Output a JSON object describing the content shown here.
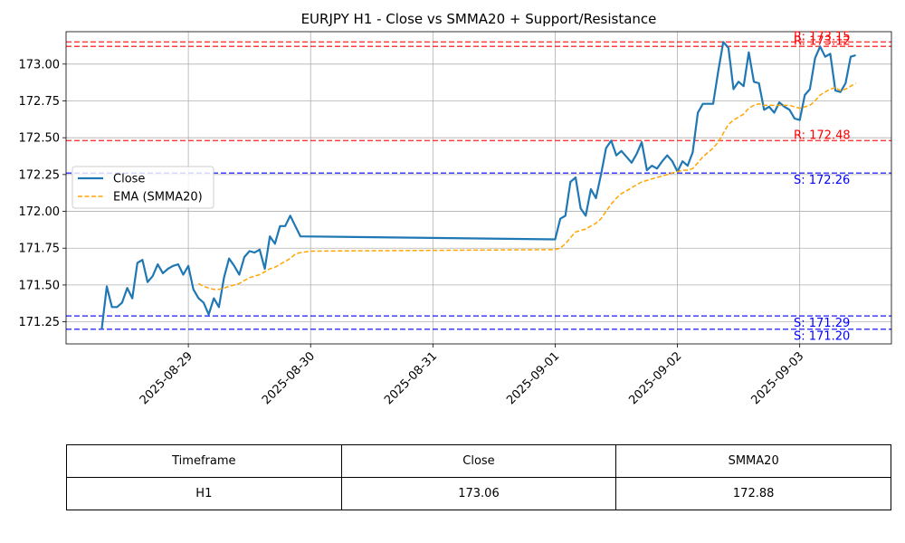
{
  "chart_data": {
    "type": "line",
    "title": "EURJPY H1 - Close vs SMMA20 + Support/Resistance",
    "xlabel": "",
    "ylabel": "",
    "x_ticks": [
      "2025-08-29",
      "2025-08-30",
      "2025-08-31",
      "2025-09-01",
      "2025-09-02",
      "2025-09-03"
    ],
    "y_ticks": [
      "171.25",
      "171.50",
      "171.75",
      "172.00",
      "172.25",
      "172.50",
      "172.75",
      "173.00"
    ],
    "xlim": [
      "2025-08-28 00:00",
      "2025-09-03 18:00"
    ],
    "ylim": [
      171.1,
      173.22
    ],
    "grid": true,
    "legend_position": "center-left",
    "series": [
      {
        "name": "Close",
        "color": "#1f77b4",
        "style": "solid",
        "points": [
          [
            "2025-08-28 07:00",
            171.2
          ],
          [
            "2025-08-28 08:00",
            171.49
          ],
          [
            "2025-08-28 09:00",
            171.35
          ],
          [
            "2025-08-28 10:00",
            171.35
          ],
          [
            "2025-08-28 11:00",
            171.38
          ],
          [
            "2025-08-28 12:00",
            171.48
          ],
          [
            "2025-08-28 13:00",
            171.41
          ],
          [
            "2025-08-28 14:00",
            171.65
          ],
          [
            "2025-08-28 15:00",
            171.67
          ],
          [
            "2025-08-28 16:00",
            171.52
          ],
          [
            "2025-08-28 17:00",
            171.56
          ],
          [
            "2025-08-28 18:00",
            171.64
          ],
          [
            "2025-08-28 19:00",
            171.58
          ],
          [
            "2025-08-28 20:00",
            171.61
          ],
          [
            "2025-08-28 21:00",
            171.63
          ],
          [
            "2025-08-28 22:00",
            171.64
          ],
          [
            "2025-08-28 23:00",
            171.57
          ],
          [
            "2025-08-29 00:00",
            171.63
          ],
          [
            "2025-08-29 01:00",
            171.47
          ],
          [
            "2025-08-29 02:00",
            171.41
          ],
          [
            "2025-08-29 03:00",
            171.38
          ],
          [
            "2025-08-29 04:00",
            171.3
          ],
          [
            "2025-08-29 05:00",
            171.41
          ],
          [
            "2025-08-29 06:00",
            171.35
          ],
          [
            "2025-08-29 07:00",
            171.55
          ],
          [
            "2025-08-29 08:00",
            171.68
          ],
          [
            "2025-08-29 09:00",
            171.63
          ],
          [
            "2025-08-29 10:00",
            171.57
          ],
          [
            "2025-08-29 11:00",
            171.69
          ],
          [
            "2025-08-29 12:00",
            171.73
          ],
          [
            "2025-08-29 13:00",
            171.72
          ],
          [
            "2025-08-29 14:00",
            171.74
          ],
          [
            "2025-08-29 15:00",
            171.61
          ],
          [
            "2025-08-29 16:00",
            171.83
          ],
          [
            "2025-08-29 17:00",
            171.78
          ],
          [
            "2025-08-29 18:00",
            171.9
          ],
          [
            "2025-08-29 19:00",
            171.9
          ],
          [
            "2025-08-29 20:00",
            171.97
          ],
          [
            "2025-08-29 21:00",
            171.9
          ],
          [
            "2025-08-29 22:00",
            171.83
          ],
          [
            "2025-09-01 00:00",
            171.81
          ],
          [
            "2025-09-01 01:00",
            171.95
          ],
          [
            "2025-09-01 02:00",
            171.97
          ],
          [
            "2025-09-01 03:00",
            172.2
          ],
          [
            "2025-09-01 04:00",
            172.23
          ],
          [
            "2025-09-01 05:00",
            172.02
          ],
          [
            "2025-09-01 06:00",
            171.97
          ],
          [
            "2025-09-01 07:00",
            172.15
          ],
          [
            "2025-09-01 08:00",
            172.09
          ],
          [
            "2025-09-01 09:00",
            172.25
          ],
          [
            "2025-09-01 10:00",
            172.43
          ],
          [
            "2025-09-01 11:00",
            172.48
          ],
          [
            "2025-09-01 12:00",
            172.38
          ],
          [
            "2025-09-01 13:00",
            172.41
          ],
          [
            "2025-09-01 14:00",
            172.37
          ],
          [
            "2025-09-01 15:00",
            172.33
          ],
          [
            "2025-09-01 16:00",
            172.39
          ],
          [
            "2025-09-01 17:00",
            172.47
          ],
          [
            "2025-09-01 18:00",
            172.28
          ],
          [
            "2025-09-01 19:00",
            172.31
          ],
          [
            "2025-09-01 20:00",
            172.29
          ],
          [
            "2025-09-01 21:00",
            172.34
          ],
          [
            "2025-09-01 22:00",
            172.38
          ],
          [
            "2025-09-01 23:00",
            172.34
          ],
          [
            "2025-09-02 00:00",
            172.27
          ],
          [
            "2025-09-02 01:00",
            172.34
          ],
          [
            "2025-09-02 02:00",
            172.31
          ],
          [
            "2025-09-02 03:00",
            172.4
          ],
          [
            "2025-09-02 04:00",
            172.67
          ],
          [
            "2025-09-02 05:00",
            172.73
          ],
          [
            "2025-09-02 06:00",
            172.73
          ],
          [
            "2025-09-02 07:00",
            172.73
          ],
          [
            "2025-09-02 08:00",
            172.95
          ],
          [
            "2025-09-02 09:00",
            173.15
          ],
          [
            "2025-09-02 10:00",
            173.11
          ],
          [
            "2025-09-02 11:00",
            172.83
          ],
          [
            "2025-09-02 12:00",
            172.88
          ],
          [
            "2025-09-02 13:00",
            172.85
          ],
          [
            "2025-09-02 14:00",
            173.08
          ],
          [
            "2025-09-02 15:00",
            172.88
          ],
          [
            "2025-09-02 16:00",
            172.87
          ],
          [
            "2025-09-02 17:00",
            172.69
          ],
          [
            "2025-09-02 18:00",
            172.71
          ],
          [
            "2025-09-02 19:00",
            172.67
          ],
          [
            "2025-09-02 20:00",
            172.74
          ],
          [
            "2025-09-02 21:00",
            172.71
          ],
          [
            "2025-09-02 22:00",
            172.69
          ],
          [
            "2025-09-02 23:00",
            172.63
          ],
          [
            "2025-09-03 00:00",
            172.62
          ],
          [
            "2025-09-03 01:00",
            172.79
          ],
          [
            "2025-09-03 02:00",
            172.83
          ],
          [
            "2025-09-03 03:00",
            173.04
          ],
          [
            "2025-09-03 04:00",
            173.12
          ],
          [
            "2025-09-03 05:00",
            173.05
          ],
          [
            "2025-09-03 06:00",
            173.07
          ],
          [
            "2025-09-03 07:00",
            172.82
          ],
          [
            "2025-09-03 08:00",
            172.81
          ],
          [
            "2025-09-03 09:00",
            172.87
          ],
          [
            "2025-09-03 10:00",
            173.05
          ],
          [
            "2025-09-03 11:00",
            173.06
          ]
        ]
      },
      {
        "name": "EMA (SMMA20)",
        "color": "#ffa500",
        "style": "dashed",
        "points": [
          [
            "2025-08-29 02:00",
            171.51
          ],
          [
            "2025-08-29 03:00",
            171.49
          ],
          [
            "2025-08-29 04:00",
            171.48
          ],
          [
            "2025-08-29 05:00",
            171.47
          ],
          [
            "2025-08-29 06:00",
            171.47
          ],
          [
            "2025-08-29 07:00",
            171.48
          ],
          [
            "2025-08-29 08:00",
            171.49
          ],
          [
            "2025-08-29 09:00",
            171.5
          ],
          [
            "2025-08-29 10:00",
            171.51
          ],
          [
            "2025-08-29 11:00",
            171.53
          ],
          [
            "2025-08-29 12:00",
            171.55
          ],
          [
            "2025-08-29 13:00",
            171.56
          ],
          [
            "2025-08-29 14:00",
            171.57
          ],
          [
            "2025-08-29 15:00",
            171.59
          ],
          [
            "2025-08-29 16:00",
            171.61
          ],
          [
            "2025-08-29 17:00",
            171.62
          ],
          [
            "2025-08-29 18:00",
            171.64
          ],
          [
            "2025-08-29 19:00",
            171.66
          ],
          [
            "2025-08-29 20:00",
            171.68
          ],
          [
            "2025-08-29 21:00",
            171.71
          ],
          [
            "2025-08-29 22:00",
            171.72
          ],
          [
            "2025-08-30 00:00",
            171.73
          ],
          [
            "2025-09-01 00:00",
            171.74
          ],
          [
            "2025-09-01 01:00",
            171.75
          ],
          [
            "2025-09-01 02:00",
            171.78
          ],
          [
            "2025-09-01 03:00",
            171.82
          ],
          [
            "2025-09-01 04:00",
            171.86
          ],
          [
            "2025-09-01 05:00",
            171.87
          ],
          [
            "2025-09-01 06:00",
            171.88
          ],
          [
            "2025-09-01 07:00",
            171.9
          ],
          [
            "2025-09-01 08:00",
            171.92
          ],
          [
            "2025-09-01 09:00",
            171.95
          ],
          [
            "2025-09-01 10:00",
            172.0
          ],
          [
            "2025-09-01 11:00",
            172.05
          ],
          [
            "2025-09-01 12:00",
            172.09
          ],
          [
            "2025-09-01 13:00",
            172.12
          ],
          [
            "2025-09-01 14:00",
            172.14
          ],
          [
            "2025-09-01 15:00",
            172.16
          ],
          [
            "2025-09-01 16:00",
            172.18
          ],
          [
            "2025-09-01 17:00",
            172.2
          ],
          [
            "2025-09-01 18:00",
            172.21
          ],
          [
            "2025-09-01 19:00",
            172.22
          ],
          [
            "2025-09-01 20:00",
            172.23
          ],
          [
            "2025-09-01 21:00",
            172.24
          ],
          [
            "2025-09-01 22:00",
            172.25
          ],
          [
            "2025-09-01 23:00",
            172.26
          ],
          [
            "2025-09-02 00:00",
            172.27
          ],
          [
            "2025-09-02 01:00",
            172.28
          ],
          [
            "2025-09-02 02:00",
            172.28
          ],
          [
            "2025-09-02 03:00",
            172.29
          ],
          [
            "2025-09-02 04:00",
            172.33
          ],
          [
            "2025-09-02 05:00",
            172.37
          ],
          [
            "2025-09-02 06:00",
            172.4
          ],
          [
            "2025-09-02 07:00",
            172.43
          ],
          [
            "2025-09-02 08:00",
            172.47
          ],
          [
            "2025-09-02 09:00",
            172.53
          ],
          [
            "2025-09-02 10:00",
            172.59
          ],
          [
            "2025-09-02 11:00",
            172.62
          ],
          [
            "2025-09-02 12:00",
            172.64
          ],
          [
            "2025-09-02 13:00",
            172.66
          ],
          [
            "2025-09-02 14:00",
            172.7
          ],
          [
            "2025-09-02 15:00",
            172.72
          ],
          [
            "2025-09-02 16:00",
            172.73
          ],
          [
            "2025-09-02 17:00",
            172.72
          ],
          [
            "2025-09-02 18:00",
            172.72
          ],
          [
            "2025-09-02 19:00",
            172.72
          ],
          [
            "2025-09-02 20:00",
            172.72
          ],
          [
            "2025-09-02 21:00",
            172.72
          ],
          [
            "2025-09-02 22:00",
            172.72
          ],
          [
            "2025-09-02 23:00",
            172.71
          ],
          [
            "2025-09-03 00:00",
            172.7
          ],
          [
            "2025-09-03 01:00",
            172.71
          ],
          [
            "2025-09-03 02:00",
            172.72
          ],
          [
            "2025-09-03 03:00",
            172.75
          ],
          [
            "2025-09-03 04:00",
            172.79
          ],
          [
            "2025-09-03 05:00",
            172.81
          ],
          [
            "2025-09-03 06:00",
            172.83
          ],
          [
            "2025-09-03 07:00",
            172.84
          ],
          [
            "2025-09-03 08:00",
            172.82
          ],
          [
            "2025-09-03 09:00",
            172.83
          ],
          [
            "2025-09-03 10:00",
            172.85
          ],
          [
            "2025-09-03 11:00",
            172.87
          ]
        ]
      }
    ],
    "levels": [
      {
        "kind": "resistance",
        "value": 173.15,
        "label": "R: 173.15",
        "color": "#ff0000"
      },
      {
        "kind": "resistance",
        "value": 173.12,
        "label": "R: 173.12",
        "color": "#ff0000"
      },
      {
        "kind": "resistance",
        "value": 172.48,
        "label": "R: 172.48",
        "color": "#ff0000"
      },
      {
        "kind": "support",
        "value": 172.26,
        "label": "S: 172.26",
        "color": "#0000ff"
      },
      {
        "kind": "support",
        "value": 171.29,
        "label": "S: 171.29",
        "color": "#0000ff"
      },
      {
        "kind": "support",
        "value": 171.2,
        "label": "S: 171.20",
        "color": "#0000ff"
      }
    ]
  },
  "table": {
    "headers": [
      "Timeframe",
      "Close",
      "SMMA20"
    ],
    "rows": [
      [
        "H1",
        "173.06",
        "172.88"
      ]
    ]
  }
}
